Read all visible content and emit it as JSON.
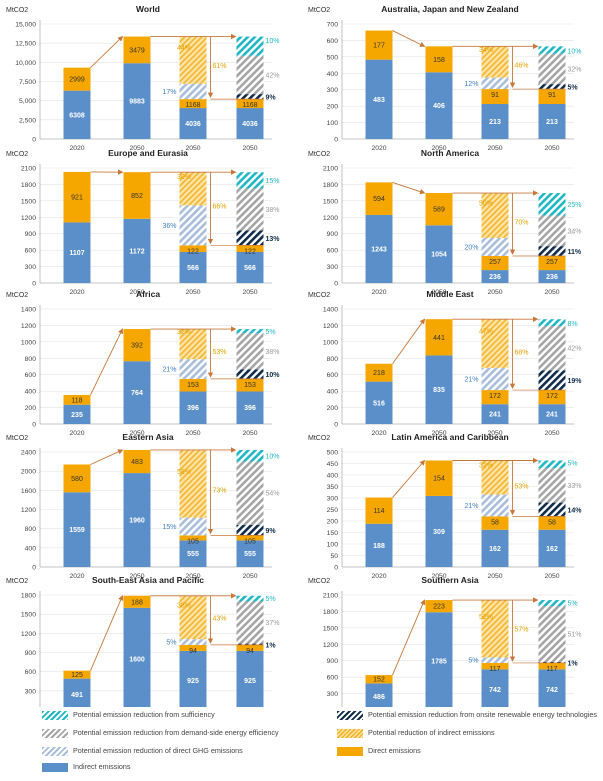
{
  "y_unit": "MtCO2",
  "colors": {
    "indirect": "#5B8FC9",
    "direct": "#F5A700",
    "sufficiency": "#1FB7C3",
    "demand_side": "#A5A5A5",
    "direct_ghg": "#A9BEDB",
    "onsite_renewable": "#0F2C4A",
    "indirect_reduction": "#F9D17A",
    "arrow": "#C8773A"
  },
  "legend": [
    {
      "key": "sufficiency",
      "label": "Potential emission reduction from sufficiency"
    },
    {
      "key": "onsite_renewable",
      "label": "Potential emission reduction from onsite renewable energy technologies"
    },
    {
      "key": "demand_side",
      "label": "Potential emission reduction from demand-side energy efficiency"
    },
    {
      "key": "indirect_reduction",
      "label": "Potential reduction of indirect emissions"
    },
    {
      "key": "direct_ghg",
      "label": "Potential emission reduction of direct GHG emissions"
    },
    {
      "key": "direct",
      "label": "Direct emissions"
    },
    {
      "key": "indirect",
      "label": "Indirect emissions"
    }
  ],
  "chart_data": [
    {
      "type": "bar",
      "title": "World",
      "ylabel": "MtCO2",
      "ylim": [
        0,
        15000
      ],
      "yticks": [
        "0",
        "2,500",
        "5,000",
        "7,500",
        "10,000",
        "12,500",
        "15,000"
      ],
      "categories": [
        "2020",
        "2050",
        "2050",
        "2050"
      ],
      "indirect": [
        6308,
        9883,
        4036,
        4036
      ],
      "direct": [
        2999,
        3479,
        1168,
        1168
      ],
      "pct": {
        "indirect_reduction": "44%",
        "direct_reduction": "61%",
        "direct_ghg": "17%",
        "demand_side": "42%",
        "sufficiency": "10%",
        "onsite_renewable": "9%"
      },
      "v": {
        "direct_ghg": 2000,
        "demand_side": 5000,
        "sufficiency": 1000,
        "onsite_renewable": 650
      }
    },
    {
      "type": "bar",
      "title": "Australia, Japan and New Zealand",
      "ylabel": "MtCO2",
      "ylim": [
        0,
        700
      ],
      "yticks": [
        "0",
        "100",
        "200",
        "300",
        "400",
        "500",
        "600",
        "700"
      ],
      "categories": [
        "2020",
        "2050",
        "2050",
        "2050"
      ],
      "indirect": [
        483,
        406,
        213,
        213
      ],
      "direct": [
        177,
        158,
        91,
        91
      ],
      "pct": {
        "indirect_reduction": "34%",
        "direct_reduction": "46%",
        "direct_ghg": "12%",
        "demand_side": "32%",
        "sufficiency": "10%",
        "onsite_renewable": "5%"
      },
      "v": {
        "direct_ghg": 70,
        "demand_side": 185,
        "sufficiency": 55,
        "onsite_renewable": 30
      }
    },
    {
      "type": "bar",
      "title": "Europe and Eurasia",
      "ylabel": "MtCO2",
      "ylim": [
        0,
        2100
      ],
      "yticks": [
        "0",
        "300",
        "600",
        "900",
        "1200",
        "1500",
        "1800",
        "2100"
      ],
      "categories": [
        "2020",
        "2050",
        "2050",
        "2050"
      ],
      "indirect": [
        1107,
        1172,
        566,
        566
      ],
      "direct": [
        921,
        852,
        122,
        122
      ],
      "pct": {
        "indirect_reduction": "30%",
        "direct_reduction": "66%",
        "direct_ghg": "36%",
        "demand_side": "38%",
        "sufficiency": "15%",
        "onsite_renewable": "13%"
      },
      "v": {
        "direct_ghg": 730,
        "demand_side": 770,
        "sufficiency": 300,
        "onsite_renewable": 270
      }
    },
    {
      "type": "bar",
      "title": "North America",
      "ylabel": "MtCO2",
      "ylim": [
        0,
        2100
      ],
      "yticks": [
        "0",
        "300",
        "600",
        "900",
        "1200",
        "1500",
        "1800",
        "2100"
      ],
      "categories": [
        "2020",
        "2050",
        "2050",
        "2050"
      ],
      "indirect": [
        1243,
        1054,
        236,
        236
      ],
      "direct": [
        594,
        589,
        257,
        257
      ],
      "pct": {
        "indirect_reduction": "50%",
        "direct_reduction": "70%",
        "direct_ghg": "20%",
        "demand_side": "34%",
        "sufficiency": "25%",
        "onsite_renewable": "11%"
      },
      "v": {
        "direct_ghg": 330,
        "demand_side": 560,
        "sufficiency": 410,
        "onsite_renewable": 180
      }
    },
    {
      "type": "bar",
      "title": "Africa",
      "ylabel": "MtCO2",
      "ylim": [
        0,
        1400
      ],
      "yticks": [
        "0",
        "200",
        "400",
        "600",
        "800",
        "1000",
        "1200",
        "1400"
      ],
      "categories": [
        "2020",
        "2050",
        "2050",
        "2050"
      ],
      "indirect": [
        235,
        764,
        396,
        396
      ],
      "direct": [
        118,
        392,
        153,
        153
      ],
      "pct": {
        "indirect_reduction": "32%",
        "direct_reduction": "53%",
        "direct_ghg": "21%",
        "demand_side": "38%",
        "sufficiency": "5%",
        "onsite_renewable": "10%"
      },
      "v": {
        "direct_ghg": 240,
        "demand_side": 440,
        "sufficiency": 60,
        "onsite_renewable": 115
      }
    },
    {
      "type": "bar",
      "title": "Middle East",
      "ylabel": "MtCO2",
      "ylim": [
        0,
        1400
      ],
      "yticks": [
        "0",
        "200",
        "400",
        "600",
        "800",
        "1000",
        "1200",
        "1400"
      ],
      "categories": [
        "2020",
        "2050",
        "2050",
        "2050"
      ],
      "indirect": [
        516,
        835,
        241,
        241
      ],
      "direct": [
        218,
        441,
        172,
        172
      ],
      "pct": {
        "indirect_reduction": "47%",
        "direct_reduction": "68%",
        "direct_ghg": "21%",
        "demand_side": "42%",
        "sufficiency": "8%",
        "onsite_renewable": "19%"
      },
      "v": {
        "direct_ghg": 270,
        "demand_side": 540,
        "sufficiency": 100,
        "onsite_renewable": 240
      }
    },
    {
      "type": "bar",
      "title": "Eastern Asia",
      "ylabel": "MtCO2",
      "ylim": [
        0,
        2400
      ],
      "yticks": [
        "0",
        "400",
        "800",
        "1200",
        "1600",
        "2000",
        "2400"
      ],
      "categories": [
        "2020",
        "2050",
        "2050",
        "2050"
      ],
      "indirect": [
        1559,
        1960,
        555,
        555
      ],
      "direct": [
        580,
        483,
        105,
        105
      ],
      "pct": {
        "indirect_reduction": "58%",
        "direct_reduction": "73%",
        "direct_ghg": "15%",
        "demand_side": "54%",
        "sufficiency": "10%",
        "onsite_renewable": "9%"
      },
      "v": {
        "direct_ghg": 370,
        "demand_side": 1320,
        "sufficiency": 245,
        "onsite_renewable": 220
      }
    },
    {
      "type": "bar",
      "title": "Latin America and Caribbean",
      "ylabel": "MtCO2",
      "ylim": [
        0,
        500
      ],
      "yticks": [
        "0",
        "50",
        "100",
        "150",
        "200",
        "250",
        "300",
        "350",
        "400",
        "450",
        "500"
      ],
      "categories": [
        "2020",
        "2050",
        "2050",
        "2050"
      ],
      "indirect": [
        188,
        309,
        162,
        162
      ],
      "direct": [
        114,
        154,
        58,
        58
      ],
      "pct": {
        "indirect_reduction": "32%",
        "direct_reduction": "53%",
        "direct_ghg": "21%",
        "demand_side": "33%",
        "sufficiency": "5%",
        "onsite_renewable": "14%"
      },
      "v": {
        "direct_ghg": 95,
        "demand_side": 150,
        "sufficiency": 20,
        "onsite_renewable": 60
      }
    },
    {
      "type": "bar",
      "title": "South-East Asia and Pacific",
      "ylabel": "MtCO2",
      "ylim": [
        0,
        1800
      ],
      "yticks": [
        "0",
        "300",
        "600",
        "900",
        "1200",
        "1500",
        "1800"
      ],
      "categories": [
        "2020",
        "2050",
        "2050",
        "2050"
      ],
      "indirect": [
        491,
        1600,
        925,
        925
      ],
      "direct": [
        125,
        188,
        94,
        94
      ],
      "pct": {
        "indirect_reduction": "38%",
        "direct_reduction": "43%",
        "direct_ghg": "5%",
        "demand_side": "37%",
        "sufficiency": "5%",
        "onsite_renewable": "1%"
      },
      "v": {
        "direct_ghg": 90,
        "demand_side": 660,
        "sufficiency": 90,
        "onsite_renewable": 20
      }
    },
    {
      "type": "bar",
      "title": "Southern Asia",
      "ylabel": "MtCO2",
      "ylim": [
        0,
        2100
      ],
      "yticks": [
        "0",
        "300",
        "600",
        "900",
        "1200",
        "1500",
        "1800",
        "2100"
      ],
      "categories": [
        "2020",
        "2050",
        "2050",
        "2050"
      ],
      "indirect": [
        486,
        1785,
        742,
        742
      ],
      "direct": [
        152,
        223,
        117,
        117
      ],
      "pct": {
        "indirect_reduction": "52%",
        "direct_reduction": "57%",
        "direct_ghg": "5%",
        "demand_side": "51%",
        "sufficiency": "5%",
        "onsite_renewable": "1%"
      },
      "v": {
        "direct_ghg": 100,
        "demand_side": 1020,
        "sufficiency": 100,
        "onsite_renewable": 20
      }
    }
  ]
}
